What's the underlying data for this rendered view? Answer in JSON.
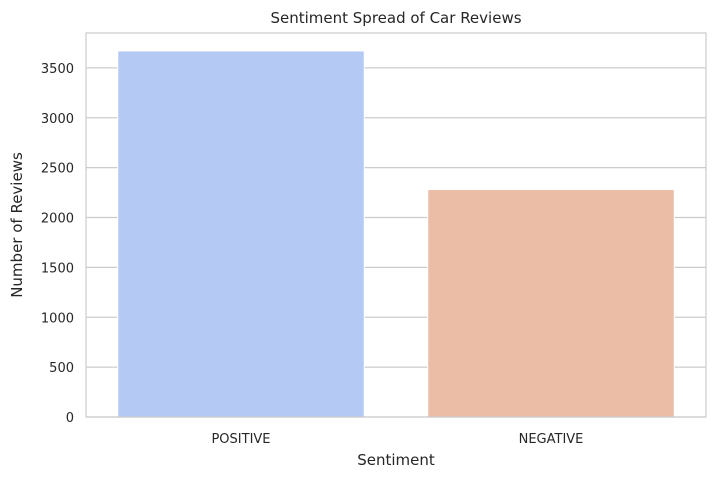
{
  "chart_data": {
    "type": "bar",
    "title": "Sentiment Spread of Car Reviews",
    "xlabel": "Sentiment",
    "ylabel": "Number of Reviews",
    "categories": [
      "POSITIVE",
      "NEGATIVE"
    ],
    "values": [
      3670,
      2280
    ],
    "colors": [
      "#b4c9f4",
      "#ebbca6"
    ],
    "ylim": [
      0,
      3850
    ],
    "yticks": [
      0,
      500,
      1000,
      1500,
      2000,
      2500,
      3000,
      3500
    ],
    "grid": true
  }
}
